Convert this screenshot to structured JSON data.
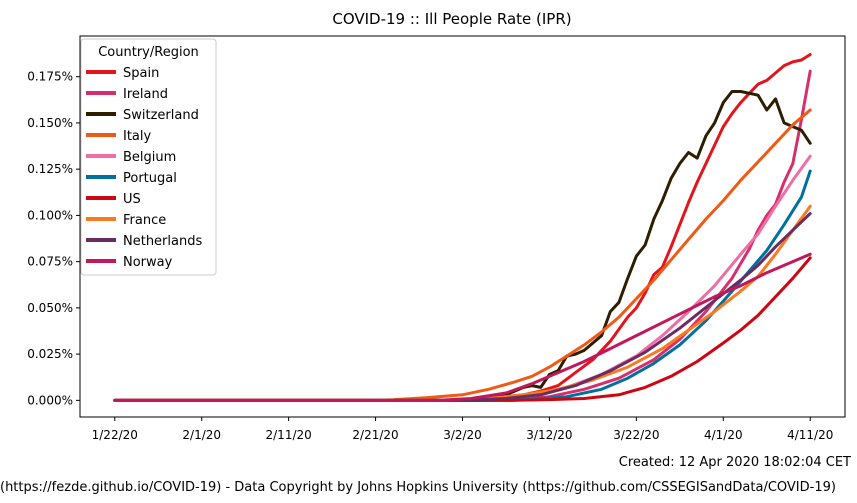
{
  "chart_data": {
    "type": "line",
    "title": "COVID-19 :: Ill People Rate (IPR)",
    "xlabel": "",
    "ylabel": "",
    "x_start": "1/22/20",
    "x_end": "4/11/20",
    "xlim": [
      "1/18/20",
      "4/15/20"
    ],
    "ylim": [
      -9e-05,
      0.00197
    ],
    "grid": false,
    "legend_placement": "upper-left",
    "legend_title": "Country/Region",
    "x_ticks": [
      "1/22/20",
      "2/1/20",
      "2/11/20",
      "2/21/20",
      "3/2/20",
      "3/12/20",
      "3/22/20",
      "4/1/20",
      "4/11/20"
    ],
    "y_ticks": [
      {
        "value": 0,
        "label": "0.000%"
      },
      {
        "value": 0.00025,
        "label": "0.025%"
      },
      {
        "value": 0.0005,
        "label": "0.050%"
      },
      {
        "value": 0.00075,
        "label": "0.075%"
      },
      {
        "value": 0.001,
        "label": "0.100%"
      },
      {
        "value": 0.00125,
        "label": "0.125%"
      },
      {
        "value": 0.0015,
        "label": "0.150%"
      },
      {
        "value": 0.00175,
        "label": "0.175%"
      }
    ],
    "series": [
      {
        "name": "Spain",
        "color": "#e3141c",
        "points": [
          [
            "1/22/20",
            0
          ],
          [
            "2/29/20",
            0
          ],
          [
            "3/5/20",
            1e-05
          ],
          [
            "3/9/20",
            3e-05
          ],
          [
            "3/11/20",
            5e-05
          ],
          [
            "3/13/20",
            8e-05
          ],
          [
            "3/15/20",
            0.00015
          ],
          [
            "3/17/20",
            0.00022
          ],
          [
            "3/19/20",
            0.00032
          ],
          [
            "3/21/20",
            0.00045
          ],
          [
            "3/22/20",
            0.0005
          ],
          [
            "3/23/20",
            0.00058
          ],
          [
            "3/24/20",
            0.00068
          ],
          [
            "3/25/20",
            0.00072
          ],
          [
            "3/26/20",
            0.00083
          ],
          [
            "3/27/20",
            0.00095
          ],
          [
            "3/28/20",
            0.00107
          ],
          [
            "3/29/20",
            0.00118
          ],
          [
            "3/30/20",
            0.00128
          ],
          [
            "3/31/20",
            0.00138
          ],
          [
            "4/1/20",
            0.00148
          ],
          [
            "4/2/20",
            0.00155
          ],
          [
            "4/3/20",
            0.00161
          ],
          [
            "4/4/20",
            0.00166
          ],
          [
            "4/5/20",
            0.00171
          ],
          [
            "4/6/20",
            0.00173
          ],
          [
            "4/7/20",
            0.00177
          ],
          [
            "4/8/20",
            0.00181
          ],
          [
            "4/9/20",
            0.00183
          ],
          [
            "4/10/20",
            0.00184
          ],
          [
            "4/11/20",
            0.00187
          ]
        ]
      },
      {
        "name": "Ireland",
        "color": "#d62f6b",
        "points": [
          [
            "1/22/20",
            0
          ],
          [
            "3/8/20",
            0
          ],
          [
            "3/12/20",
            2e-05
          ],
          [
            "3/16/20",
            6e-05
          ],
          [
            "3/20/20",
            0.00012
          ],
          [
            "3/24/20",
            0.00022
          ],
          [
            "3/27/20",
            0.00033
          ],
          [
            "3/30/20",
            0.00048
          ],
          [
            "4/2/20",
            0.00066
          ],
          [
            "4/4/20",
            0.00082
          ],
          [
            "4/5/20",
            0.00092
          ],
          [
            "4/6/20",
            0.001
          ],
          [
            "4/7/20",
            0.00106
          ],
          [
            "4/8/20",
            0.00118
          ],
          [
            "4/9/20",
            0.00128
          ],
          [
            "4/10/20",
            0.00152
          ],
          [
            "4/11/20",
            0.00178
          ]
        ]
      },
      {
        "name": "Switzerland",
        "color": "#2d1e00",
        "points": [
          [
            "1/22/20",
            0
          ],
          [
            "3/1/20",
            0
          ],
          [
            "3/4/20",
            1e-05
          ],
          [
            "3/7/20",
            3e-05
          ],
          [
            "3/9/20",
            7e-05
          ],
          [
            "3/10/20",
            8e-05
          ],
          [
            "3/11/20",
            7e-05
          ],
          [
            "3/12/20",
            0.00014
          ],
          [
            "3/13/20",
            0.00016
          ],
          [
            "3/14/20",
            0.00024
          ],
          [
            "3/15/20",
            0.00025
          ],
          [
            "3/16/20",
            0.00027
          ],
          [
            "3/17/20",
            0.00031
          ],
          [
            "3/18/20",
            0.00035
          ],
          [
            "3/19/20",
            0.00048
          ],
          [
            "3/20/20",
            0.00053
          ],
          [
            "3/21/20",
            0.00066
          ],
          [
            "3/22/20",
            0.00078
          ],
          [
            "3/23/20",
            0.00084
          ],
          [
            "3/24/20",
            0.00098
          ],
          [
            "3/25/20",
            0.00108
          ],
          [
            "3/26/20",
            0.0012
          ],
          [
            "3/27/20",
            0.00128
          ],
          [
            "3/28/20",
            0.00134
          ],
          [
            "3/29/20",
            0.00131
          ],
          [
            "3/30/20",
            0.00143
          ],
          [
            "3/31/20",
            0.0015
          ],
          [
            "4/1/20",
            0.00161
          ],
          [
            "4/2/20",
            0.00167
          ],
          [
            "4/3/20",
            0.00167
          ],
          [
            "4/4/20",
            0.00166
          ],
          [
            "4/5/20",
            0.00165
          ],
          [
            "4/6/20",
            0.00157
          ],
          [
            "4/7/20",
            0.00163
          ],
          [
            "4/8/20",
            0.0015
          ],
          [
            "4/9/20",
            0.00148
          ],
          [
            "4/10/20",
            0.00146
          ],
          [
            "4/11/20",
            0.00139
          ]
        ]
      },
      {
        "name": "Italy",
        "color": "#f05a14",
        "points": [
          [
            "1/22/20",
            0
          ],
          [
            "2/20/20",
            0
          ],
          [
            "2/23/20",
            3e-06
          ],
          [
            "2/27/20",
            1.5e-05
          ],
          [
            "3/2/20",
            3e-05
          ],
          [
            "3/5/20",
            6e-05
          ],
          [
            "3/8/20",
            0.0001
          ],
          [
            "3/10/20",
            0.00013
          ],
          [
            "3/12/20",
            0.00018
          ],
          [
            "3/14/20",
            0.00024
          ],
          [
            "3/16/20",
            0.0003
          ],
          [
            "3/18/20",
            0.00037
          ],
          [
            "3/20/20",
            0.00045
          ],
          [
            "3/22/20",
            0.00055
          ],
          [
            "3/24/20",
            0.00065
          ],
          [
            "3/26/20",
            0.00076
          ],
          [
            "3/28/20",
            0.00087
          ],
          [
            "3/30/20",
            0.00098
          ],
          [
            "4/1/20",
            0.00108
          ],
          [
            "4/3/20",
            0.00119
          ],
          [
            "4/5/20",
            0.00129
          ],
          [
            "4/7/20",
            0.00139
          ],
          [
            "4/9/20",
            0.00149
          ],
          [
            "4/11/20",
            0.00157
          ]
        ]
      },
      {
        "name": "Belgium",
        "color": "#ee6ea5",
        "points": [
          [
            "1/22/20",
            0
          ],
          [
            "3/5/20",
            0
          ],
          [
            "3/10/20",
            3e-05
          ],
          [
            "3/14/20",
            7e-05
          ],
          [
            "3/18/20",
            0.00014
          ],
          [
            "3/22/20",
            0.00024
          ],
          [
            "3/25/20",
            0.00035
          ],
          [
            "3/28/20",
            0.00048
          ],
          [
            "3/31/20",
            0.00062
          ],
          [
            "4/3/20",
            0.00079
          ],
          [
            "4/5/20",
            0.0009
          ],
          [
            "4/7/20",
            0.00105
          ],
          [
            "4/9/20",
            0.00119
          ],
          [
            "4/11/20",
            0.00132
          ]
        ]
      },
      {
        "name": "Portugal",
        "color": "#00709e",
        "points": [
          [
            "1/22/20",
            0
          ],
          [
            "3/4/20",
            0
          ],
          [
            "3/10/20",
            6e-06
          ],
          [
            "3/14/20",
            2e-05
          ],
          [
            "3/18/20",
            6e-05
          ],
          [
            "3/21/20",
            0.00012
          ],
          [
            "3/24/20",
            0.0002
          ],
          [
            "3/27/20",
            0.0003
          ],
          [
            "3/30/20",
            0.00043
          ],
          [
            "4/2/20",
            0.00059
          ],
          [
            "4/4/20",
            0.0007
          ],
          [
            "4/6/20",
            0.00081
          ],
          [
            "4/8/20",
            0.00095
          ],
          [
            "4/10/20",
            0.0011
          ],
          [
            "4/11/20",
            0.00124
          ]
        ]
      },
      {
        "name": "US",
        "color": "#cc0711",
        "points": [
          [
            "1/22/20",
            0
          ],
          [
            "3/7/20",
            0
          ],
          [
            "3/12/20",
            4e-06
          ],
          [
            "3/16/20",
            1e-05
          ],
          [
            "3/20/20",
            3e-05
          ],
          [
            "3/23/20",
            7e-05
          ],
          [
            "3/26/20",
            0.00013
          ],
          [
            "3/29/20",
            0.00021
          ],
          [
            "4/1/20",
            0.00031
          ],
          [
            "4/3/20",
            0.00038
          ],
          [
            "4/5/20",
            0.00046
          ],
          [
            "4/7/20",
            0.00056
          ],
          [
            "4/9/20",
            0.00066
          ],
          [
            "4/11/20",
            0.00077
          ]
        ]
      },
      {
        "name": "France",
        "color": "#fa7a22",
        "points": [
          [
            "1/22/20",
            0
          ],
          [
            "3/1/20",
            0
          ],
          [
            "3/5/20",
            1e-05
          ],
          [
            "3/9/20",
            3e-05
          ],
          [
            "3/13/20",
            6e-05
          ],
          [
            "3/17/20",
            0.00011
          ],
          [
            "3/21/20",
            0.00018
          ],
          [
            "3/25/20",
            0.00028
          ],
          [
            "3/28/20",
            0.00038
          ],
          [
            "3/31/20",
            0.00048
          ],
          [
            "4/3/20",
            0.00059
          ],
          [
            "4/5/20",
            0.00067
          ],
          [
            "4/7/20",
            0.00079
          ],
          [
            "4/9/20",
            0.00092
          ],
          [
            "4/11/20",
            0.00105
          ]
        ]
      },
      {
        "name": "Netherlands",
        "color": "#6b2c62",
        "points": [
          [
            "1/22/20",
            0
          ],
          [
            "3/2/20",
            0
          ],
          [
            "3/7/20",
            1e-05
          ],
          [
            "3/11/20",
            3e-05
          ],
          [
            "3/15/20",
            8e-05
          ],
          [
            "3/19/20",
            0.00016
          ],
          [
            "3/23/20",
            0.00026
          ],
          [
            "3/27/20",
            0.00039
          ],
          [
            "3/31/20",
            0.00054
          ],
          [
            "4/3/20",
            0.00065
          ],
          [
            "4/5/20",
            0.00073
          ],
          [
            "4/7/20",
            0.00083
          ],
          [
            "4/9/20",
            0.00092
          ],
          [
            "4/11/20",
            0.00101
          ]
        ]
      },
      {
        "name": "Norway",
        "color": "#c0185a",
        "points": [
          [
            "1/22/20",
            0
          ],
          [
            "2/28/20",
            0
          ],
          [
            "3/3/20",
            1e-05
          ],
          [
            "3/7/20",
            4e-05
          ],
          [
            "3/10/20",
            9e-05
          ],
          [
            "3/13/20",
            0.00015
          ],
          [
            "3/16/20",
            0.00021
          ],
          [
            "3/19/20",
            0.00028
          ],
          [
            "3/22/20",
            0.00035
          ],
          [
            "3/25/20",
            0.00042
          ],
          [
            "3/28/20",
            0.00049
          ],
          [
            "3/31/20",
            0.00056
          ],
          [
            "4/3/20",
            0.00062
          ],
          [
            "4/6/20",
            0.00069
          ],
          [
            "4/9/20",
            0.00075
          ],
          [
            "4/11/20",
            0.00079
          ]
        ]
      }
    ]
  },
  "footer": {
    "created": "Created: 12 Apr 2020 18:02:04 CET",
    "source": "(https://fezde.github.io/COVID-19) - Data Copyright by Johns Hopkins University (https://github.com/CSSEGISandData/COVID-19)"
  }
}
